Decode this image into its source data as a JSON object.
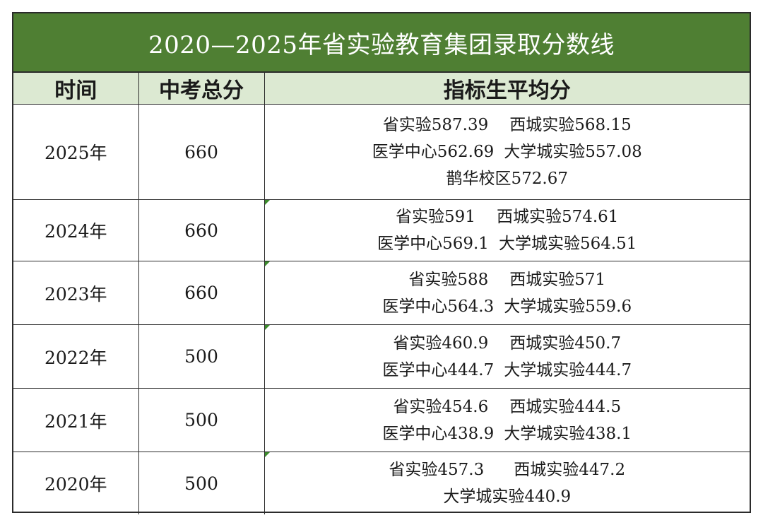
{
  "title": "2020—2025年省实验教育集团录取分数线",
  "headers": {
    "year": "时间",
    "total": "中考总分",
    "average": "指标生平均分"
  },
  "rows": [
    {
      "year": "2025年",
      "total": "660",
      "lines": [
        [
          "省实验587.39",
          "西城实验568.15"
        ],
        [
          "医学中心562.69",
          "大学城实验557.08"
        ],
        [
          "鹊华校区572.67"
        ]
      ]
    },
    {
      "year": "2024年",
      "total": "660",
      "lines": [
        [
          "省实验591",
          "西城实验574.61"
        ],
        [
          "医学中心569.1",
          "大学城实验564.51"
        ]
      ]
    },
    {
      "year": "2023年",
      "total": "660",
      "lines": [
        [
          "省实验588",
          "西城实验571"
        ],
        [
          "医学中心564.3",
          "大学城实验559.6"
        ]
      ]
    },
    {
      "year": "2022年",
      "total": "500",
      "lines": [
        [
          "省实验460.9",
          "西城实验450.7"
        ],
        [
          "医学中心444.7",
          "大学城实验444.7"
        ]
      ]
    },
    {
      "year": "2021年",
      "total": "500",
      "lines": [
        [
          "省实验454.6",
          "西城实验444.5"
        ],
        [
          "医学中心438.9",
          "大学城实验438.1"
        ]
      ]
    },
    {
      "year": "2020年",
      "total": "500",
      "lines": [
        [
          "省实验457.3",
          "西城实验447.2"
        ],
        [
          "大学城实验440.9"
        ]
      ]
    }
  ],
  "colors": {
    "title_bg": "#4f7f33",
    "header_bg": "#dce9d2",
    "border": "#2b2b2b"
  }
}
